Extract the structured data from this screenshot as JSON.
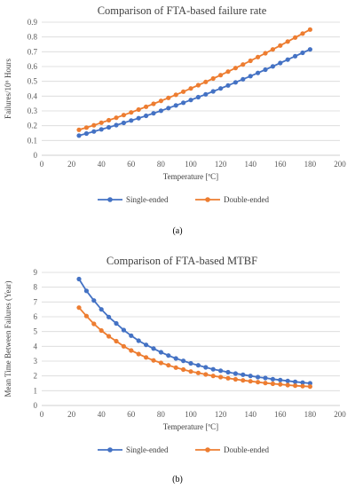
{
  "chart_data": [
    {
      "type": "line",
      "title": "Comparison of FTA-based failure rate",
      "xlabel": "Temperature [ºC]",
      "ylabel": "Failures/10⁶ Hours",
      "xlim": [
        0,
        200
      ],
      "ylim": [
        0,
        0.9
      ],
      "xticks": [
        "0",
        "20",
        "40",
        "60",
        "80",
        "100",
        "120",
        "140",
        "160",
        "180",
        "200"
      ],
      "yticks": [
        "0",
        "0.1",
        "0.2",
        "0.3",
        "0.4",
        "0.5",
        "0.6",
        "0.7",
        "0.8",
        "0.9"
      ],
      "grid": "horizontal",
      "legend": "bottom",
      "x": [
        25,
        30,
        35,
        40,
        45,
        50,
        55,
        60,
        65,
        70,
        75,
        80,
        85,
        90,
        95,
        100,
        105,
        110,
        115,
        120,
        125,
        130,
        135,
        140,
        145,
        150,
        155,
        160,
        165,
        170,
        175,
        180
      ],
      "series": [
        {
          "name": "Single-ended",
          "color": "#4472c4",
          "values": [
            0.133,
            0.147,
            0.161,
            0.175,
            0.189,
            0.204,
            0.219,
            0.235,
            0.251,
            0.267,
            0.284,
            0.301,
            0.319,
            0.337,
            0.355,
            0.374,
            0.393,
            0.412,
            0.432,
            0.452,
            0.472,
            0.493,
            0.514,
            0.535,
            0.557,
            0.579,
            0.601,
            0.624,
            0.647,
            0.67,
            0.693,
            0.716
          ]
        },
        {
          "name": "Double-ended",
          "color": "#ed7d31",
          "values": [
            0.172,
            0.187,
            0.203,
            0.22,
            0.237,
            0.254,
            0.272,
            0.29,
            0.309,
            0.328,
            0.348,
            0.368,
            0.388,
            0.409,
            0.43,
            0.452,
            0.474,
            0.496,
            0.519,
            0.542,
            0.566,
            0.59,
            0.614,
            0.639,
            0.664,
            0.69,
            0.716,
            0.742,
            0.769,
            0.796,
            0.823,
            0.85
          ]
        }
      ]
    },
    {
      "type": "line",
      "title": "Comparison of FTA-based MTBF",
      "xlabel": "Temperature [ºC]",
      "ylabel": "Mean Time Between Failures (Year)",
      "xlim": [
        0,
        200
      ],
      "ylim": [
        0,
        9
      ],
      "xticks": [
        "0",
        "20",
        "40",
        "60",
        "80",
        "100",
        "120",
        "140",
        "160",
        "180",
        "200"
      ],
      "yticks": [
        "0",
        "1",
        "2",
        "3",
        "4",
        "5",
        "6",
        "7",
        "8",
        "9"
      ],
      "grid": "horizontal",
      "legend": "bottom",
      "x": [
        25,
        30,
        35,
        40,
        45,
        50,
        55,
        60,
        65,
        70,
        75,
        80,
        85,
        90,
        95,
        100,
        105,
        110,
        115,
        120,
        125,
        130,
        135,
        140,
        145,
        150,
        155,
        160,
        165,
        170,
        175,
        180
      ],
      "series": [
        {
          "name": "Single-ended",
          "color": "#4472c4",
          "values": [
            8.55,
            7.75,
            7.1,
            6.5,
            5.98,
            5.55,
            5.1,
            4.72,
            4.38,
            4.1,
            3.85,
            3.6,
            3.38,
            3.18,
            3.02,
            2.85,
            2.72,
            2.58,
            2.45,
            2.35,
            2.25,
            2.16,
            2.08,
            2.0,
            1.92,
            1.86,
            1.78,
            1.72,
            1.66,
            1.6,
            1.55,
            1.5
          ]
        },
        {
          "name": "Double-ended",
          "color": "#ed7d31",
          "values": [
            6.62,
            6.05,
            5.52,
            5.07,
            4.68,
            4.35,
            4.0,
            3.72,
            3.48,
            3.25,
            3.05,
            2.88,
            2.72,
            2.56,
            2.43,
            2.3,
            2.2,
            2.1,
            2.0,
            1.92,
            1.84,
            1.77,
            1.7,
            1.64,
            1.58,
            1.52,
            1.47,
            1.43,
            1.38,
            1.34,
            1.31,
            1.28
          ]
        }
      ]
    }
  ],
  "captions": [
    "(a)",
    "(b)"
  ]
}
